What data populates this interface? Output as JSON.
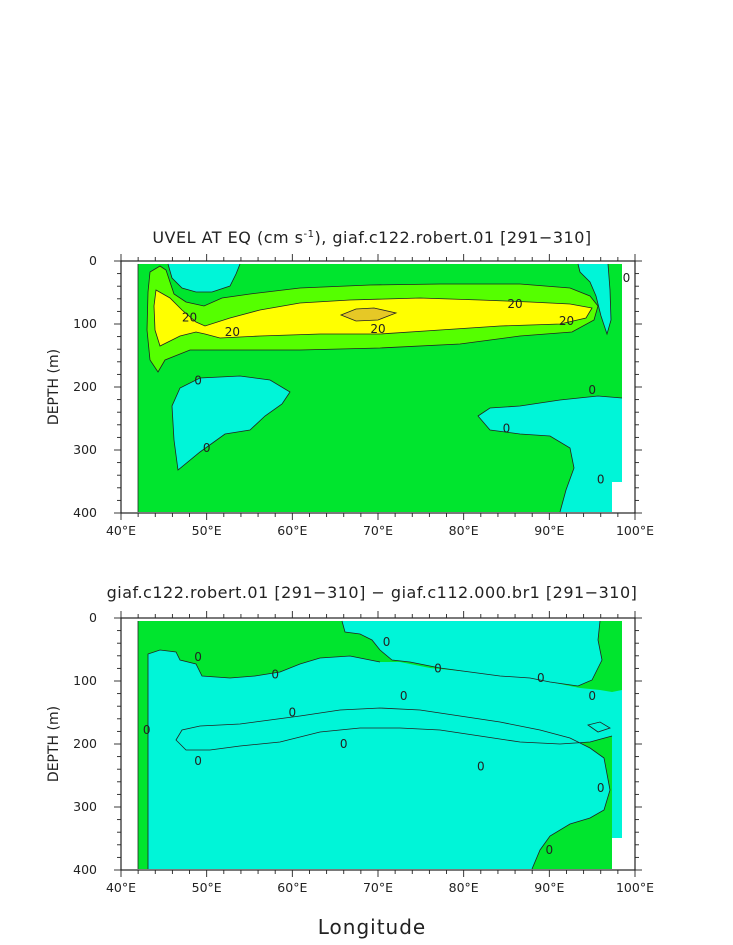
{
  "chart_data": [
    {
      "type": "contour",
      "title_main": "UVEL AT EQ (cm s",
      "title_sup": "-1",
      "title_rest": "), giaf.c122.robert.01 [291−310]",
      "ylabel": "DEPTH (m)",
      "xlabel": "",
      "x_range": [
        40,
        100
      ],
      "y_range": [
        0,
        400
      ],
      "y_inverted": true,
      "x_ticks": [
        "40°E",
        "50°E",
        "60°E",
        "70°E",
        "80°E",
        "90°E",
        "100°E"
      ],
      "y_ticks": [
        "0",
        "100",
        "200",
        "300",
        "400"
      ],
      "contour_levels": [
        0,
        10,
        20,
        30
      ],
      "fill_colors": {
        "negative": "#00f5d8",
        "pos_0_10": "#00e52e",
        "pos_10_20": "#55ff00",
        "pos_20_30": "#ffff00",
        "pos_30_plus": "#e6c826"
      },
      "contour_labels": [
        {
          "text": "20",
          "x": 86,
          "y": 68
        },
        {
          "text": "20",
          "x": 70,
          "y": 108
        },
        {
          "text": "20",
          "x": 92,
          "y": 95
        },
        {
          "text": "20",
          "x": 53,
          "y": 113
        },
        {
          "text": "20",
          "x": 48,
          "y": 90
        },
        {
          "text": "0",
          "x": 49,
          "y": 190
        },
        {
          "text": "0",
          "x": 50,
          "y": 297
        },
        {
          "text": "0",
          "x": 85,
          "y": 266
        },
        {
          "text": "0",
          "x": 95,
          "y": 205
        },
        {
          "text": "0",
          "x": 96,
          "y": 347
        },
        {
          "text": "0",
          "x": 99,
          "y": 27
        }
      ]
    },
    {
      "type": "contour",
      "title": "giaf.c122.robert.01 [291−310] − giaf.c112.000.br1 [291−310]",
      "ylabel": "DEPTH (m)",
      "xlabel": "Longitude",
      "x_range": [
        40,
        100
      ],
      "y_range": [
        0,
        400
      ],
      "y_inverted": true,
      "x_ticks": [
        "40°E",
        "50°E",
        "60°E",
        "70°E",
        "80°E",
        "90°E",
        "100°E"
      ],
      "y_ticks": [
        "0",
        "100",
        "200",
        "300",
        "400"
      ],
      "contour_levels": [
        0
      ],
      "fill_colors": {
        "negative": "#00f5d8",
        "positive": "#00e52e"
      },
      "contour_labels": [
        {
          "text": "0",
          "x": 49,
          "y": 62
        },
        {
          "text": "0",
          "x": 58,
          "y": 90
        },
        {
          "text": "0",
          "x": 71,
          "y": 38
        },
        {
          "text": "0",
          "x": 77,
          "y": 80
        },
        {
          "text": "0",
          "x": 89,
          "y": 95
        },
        {
          "text": "0",
          "x": 95,
          "y": 124
        },
        {
          "text": "0",
          "x": 73,
          "y": 124
        },
        {
          "text": "0",
          "x": 60,
          "y": 150
        },
        {
          "text": "0",
          "x": 43,
          "y": 178
        },
        {
          "text": "0",
          "x": 66,
          "y": 200
        },
        {
          "text": "0",
          "x": 49,
          "y": 227
        },
        {
          "text": "0",
          "x": 82,
          "y": 236
        },
        {
          "text": "0",
          "x": 96,
          "y": 270
        },
        {
          "text": "0",
          "x": 90,
          "y": 368
        }
      ]
    }
  ]
}
